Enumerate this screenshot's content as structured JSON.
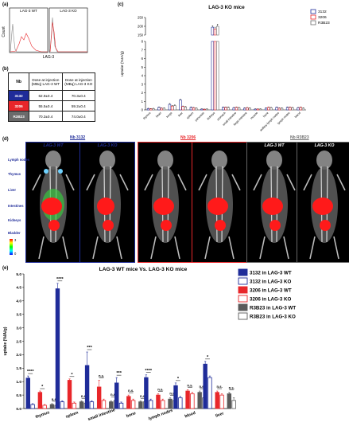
{
  "panel_a": {
    "letter": "(a)",
    "y_label": "Count",
    "x_label": "LAG-3",
    "titles": [
      "LAG-3 WT",
      "LAG-3 KO"
    ]
  },
  "panel_b": {
    "letter": "(b)",
    "header_nb": "Nb",
    "header_wt": "Dose at injection (MBq) LAG-3 WT",
    "header_ko": "Dose at injection (MBq) LAG-3 KO",
    "rows": [
      {
        "name": "3132",
        "wt": "62.9±0.4",
        "ko": "70.3±0.4",
        "color": "#1f2c99"
      },
      {
        "name": "3206",
        "wt": "55.5±0.4",
        "ko": "59.2±0.4",
        "color": "#e8262a"
      },
      {
        "name": "R3B23",
        "wt": "70.3±0.4",
        "ko": "74.0±0.4",
        "color": "#6b6b6b"
      }
    ]
  },
  "panel_c": {
    "letter": "(c)",
    "chart_data": {
      "type": "bar",
      "title": "LAG-3 KO mice",
      "ylabel": "uptake (%IA/g)",
      "ylim_lower": [
        0,
        8
      ],
      "ylim_upper": [
        150,
        250
      ],
      "yticks_lower": [
        "0",
        "1",
        "2",
        "3",
        "4",
        "5",
        "6",
        "7",
        "8"
      ],
      "yticks_upper": [
        "150",
        "200",
        "250"
      ],
      "categories": [
        "thymus",
        "heart",
        "lungs",
        "liver",
        "spleen",
        "pancreas",
        "kidneys",
        "stomach",
        "small intestine",
        "large intestine",
        "muscle",
        "bone",
        "axillary lymph nodes",
        "lymph nodes",
        "blood"
      ],
      "series": [
        {
          "name": "3132",
          "color": "#1f2c99",
          "values": [
            0.15,
            0.3,
            0.65,
            1.15,
            0.3,
            0.1,
            195,
            0.3,
            0.25,
            0.2,
            0.1,
            0.2,
            0.3,
            0.3,
            0.25
          ],
          "errors": [
            0.05,
            0.05,
            0.1,
            0.1,
            0.05,
            0.03,
            8,
            0.05,
            0.05,
            0.05,
            0.03,
            0.05,
            0.05,
            0.05,
            0.05
          ]
        },
        {
          "name": "3206",
          "color": "#e8262a",
          "values": [
            0.12,
            0.2,
            0.45,
            0.4,
            0.25,
            0.08,
            185,
            0.3,
            0.3,
            0.25,
            0.1,
            0.3,
            0.2,
            0.3,
            0.3
          ],
          "errors": [
            0.04,
            0.04,
            0.08,
            0.06,
            0.05,
            0.02,
            10,
            0.05,
            0.05,
            0.05,
            0.03,
            0.05,
            0.05,
            0.05,
            0.05
          ]
        },
        {
          "name": "R3B23",
          "color": "#6b6b6b",
          "values": [
            0.15,
            0.2,
            0.5,
            0.35,
            0.2,
            0.1,
            200,
            0.3,
            0.25,
            0.2,
            0.1,
            0.25,
            0.2,
            0.25,
            0.2
          ],
          "errors": [
            0.04,
            0.04,
            0.08,
            0.06,
            0.04,
            0.02,
            12,
            0.05,
            0.05,
            0.05,
            0.03,
            0.05,
            0.05,
            0.05,
            0.05
          ]
        }
      ]
    }
  },
  "panel_d": {
    "letter": "(d)",
    "groups": [
      {
        "title": "Nb 3132",
        "color": "#1f2c99",
        "labels": [
          "LAG-3 WT",
          "LAG-3 KO"
        ]
      },
      {
        "title": "Nb 3206",
        "color": "#e8262a",
        "labels": [
          "LAG-3 WT",
          "LAG-3 KO"
        ]
      },
      {
        "title": "Nb R3B23",
        "color": "#6b6b6b",
        "labels": [
          "LAG-3 WT",
          "LAG-3 KO"
        ]
      }
    ],
    "organ_labels": [
      "Lymph nodes",
      "Thymus",
      "Liver",
      "Intestines",
      "Kidneys",
      "Bladder"
    ],
    "scale_max": "3",
    "scale_min": "0"
  },
  "panel_e": {
    "letter": "(e)",
    "chart_data": {
      "type": "bar",
      "title": "LAG-3 WT mice Vs. LAG-3 KO mice",
      "ylabel": "uptake (%IA/g)",
      "ylim": [
        0,
        5
      ],
      "yticks": [
        "0.0",
        "0.5",
        "1.0",
        "1.5",
        "2.0",
        "2.5",
        "3.0",
        "3.5",
        "4.0",
        "4.5",
        "5.0"
      ],
      "categories": [
        "thymus",
        "spleen",
        "small intestine",
        "bone",
        "lymph nodes",
        "blood",
        "liver"
      ],
      "series": [
        {
          "name": "3132 in LAG-3 WT",
          "color": "#1f2c99",
          "fill": true,
          "values": [
            1.13,
            4.45,
            1.6,
            0.95,
            1.15,
            0.85,
            1.65
          ],
          "errors": [
            0.08,
            0.2,
            0.5,
            0.2,
            0.1,
            0.1,
            0.1
          ]
        },
        {
          "name": "3132 in LAG-3 KO",
          "color": "#1f2c99",
          "fill": false,
          "values": [
            0.15,
            0.25,
            0.25,
            0.2,
            0.3,
            0.4,
            1.15
          ],
          "errors": [
            0.03,
            0.04,
            0.04,
            0.04,
            0.05,
            0.05,
            0.06
          ]
        },
        {
          "name": "3206 in LAG-3 WT",
          "color": "#e8262a",
          "fill": true,
          "values": [
            0.6,
            1.05,
            0.8,
            0.45,
            0.5,
            0.65,
            0.6
          ],
          "errors": [
            0.05,
            0.05,
            0.25,
            0.05,
            0.05,
            0.05,
            0.05
          ]
        },
        {
          "name": "3206 in LAG-3 KO",
          "color": "#e8262a",
          "fill": false,
          "values": [
            0.12,
            0.2,
            0.3,
            0.3,
            0.3,
            0.55,
            0.5
          ],
          "errors": [
            0.03,
            0.04,
            0.05,
            0.05,
            0.05,
            0.05,
            0.05
          ]
        },
        {
          "name": "R3B23 in LAG-3 WT",
          "color": "#5a5a5a",
          "fill": true,
          "values": [
            0.15,
            0.25,
            0.25,
            0.25,
            0.35,
            0.6,
            0.55
          ],
          "errors": [
            0.03,
            0.04,
            0.04,
            0.04,
            0.05,
            0.05,
            0.05
          ]
        },
        {
          "name": "R3B23 in LAG-3 KO",
          "color": "#5a5a5a",
          "fill": false,
          "values": [
            0.12,
            0.2,
            0.3,
            0.25,
            0.3,
            0.4,
            0.3
          ],
          "errors": [
            0.03,
            0.04,
            0.05,
            0.04,
            0.05,
            0.05,
            0.1
          ]
        }
      ],
      "significance": [
        [
          {
            "g": [
              0,
              1
            ],
            "label": "****"
          },
          {
            "g": [
              2,
              3
            ],
            "label": "*"
          },
          {
            "g": [
              4,
              5
            ],
            "label": "n.s."
          }
        ],
        [
          {
            "g": [
              0,
              1
            ],
            "label": "****"
          },
          {
            "g": [
              2,
              3
            ],
            "label": "*"
          },
          {
            "g": [
              4,
              5
            ],
            "label": "n.s."
          }
        ],
        [
          {
            "g": [
              0,
              1
            ],
            "label": "***"
          },
          {
            "g": [
              2,
              3
            ],
            "label": "n.s."
          },
          {
            "g": [
              4,
              5
            ],
            "label": "n.s."
          }
        ],
        [
          {
            "g": [
              0,
              1
            ],
            "label": "***"
          },
          {
            "g": [
              2,
              3
            ],
            "label": "n.s."
          },
          {
            "g": [
              4,
              5
            ],
            "label": "n.s."
          }
        ],
        [
          {
            "g": [
              0,
              1
            ],
            "label": "****"
          },
          {
            "g": [
              2,
              3
            ],
            "label": "n.s."
          },
          {
            "g": [
              4,
              5
            ],
            "label": "n.s."
          }
        ],
        [
          {
            "g": [
              0,
              1
            ],
            "label": "*"
          },
          {
            "g": [
              2,
              3
            ],
            "label": "n.s."
          },
          {
            "g": [
              4,
              5
            ],
            "label": "n.s."
          }
        ],
        [
          {
            "g": [
              0,
              1
            ],
            "label": "*"
          },
          {
            "g": [
              2,
              3
            ],
            "label": "n.s."
          },
          {
            "g": [
              4,
              5
            ],
            "label": "n.s."
          }
        ]
      ]
    }
  }
}
